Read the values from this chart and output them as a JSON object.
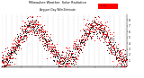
{
  "title": "Milwaukee Weather  Solar Radiation",
  "subtitle": "Avg per Day W/m2/minute",
  "background_color": "#ffffff",
  "plot_bg_color": "#ffffff",
  "ylim": [
    0,
    900
  ],
  "yticks": [
    100,
    200,
    300,
    400,
    500,
    600,
    700,
    800
  ],
  "ytick_labels": [
    "1",
    "2",
    "3",
    "4",
    "5",
    "6",
    "7",
    "8"
  ],
  "grid_color": "#bbbbbb",
  "dot_color_red": "#ff0000",
  "dot_color_black": "#000000",
  "num_points": 730,
  "legend_color": "#ff0000",
  "figsize": [
    1.6,
    0.87
  ],
  "dpi": 100
}
